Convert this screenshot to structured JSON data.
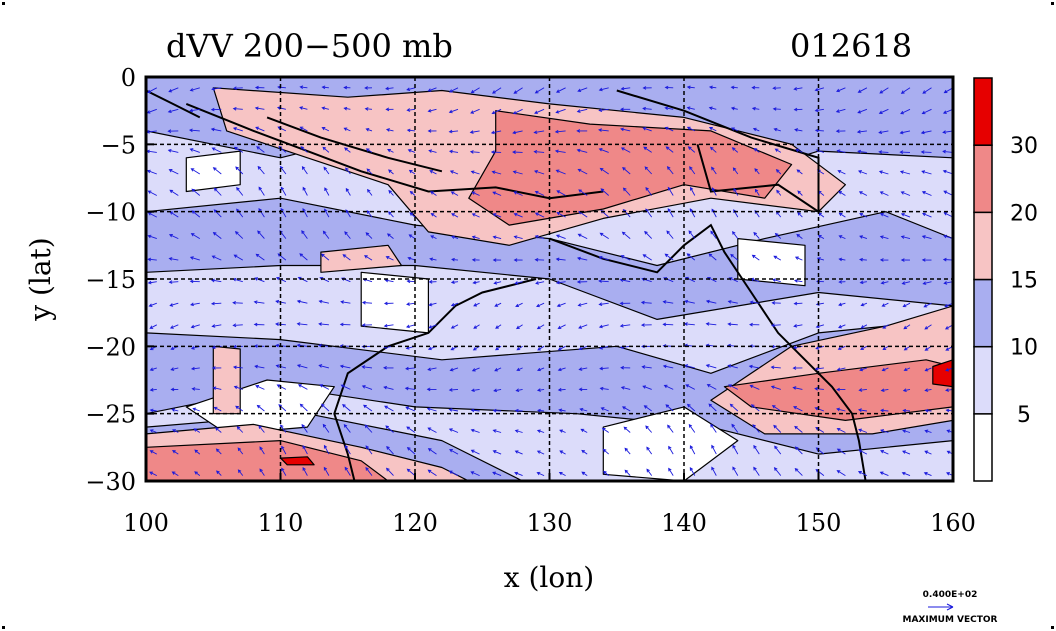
{
  "chart_data": {
    "type": "heatmap",
    "title": "dVV 200−500 mb",
    "date_label": "012618",
    "xlabel": "x (lon)",
    "ylabel": "y (lat)",
    "xlim": [
      100,
      160
    ],
    "ylim": [
      -30,
      0
    ],
    "x_ticks": [
      100,
      110,
      120,
      130,
      140,
      150,
      160
    ],
    "y_ticks": [
      0,
      -5,
      -10,
      -15,
      -20,
      -25,
      -30
    ],
    "x_tick_labels": [
      "100",
      "110",
      "120",
      "130",
      "140",
      "150",
      "160"
    ],
    "y_tick_labels": [
      "0",
      "−5",
      "−10",
      "−15",
      "−20",
      "−25",
      "−30"
    ],
    "colorbar": {
      "levels": [
        5,
        10,
        15,
        20,
        30
      ],
      "labels": [
        "5",
        "10",
        "15",
        "20",
        "30"
      ],
      "colors": [
        "#ffffff",
        "#dcdcfa",
        "#a9aef0",
        "#f7c4c4",
        "#ef8888",
        "#e60000"
      ]
    },
    "regions": [
      {
        "level": 1,
        "points": [
          [
            100,
            0
          ],
          [
            160,
            0
          ],
          [
            160,
            -30
          ],
          [
            100,
            -30
          ]
        ]
      },
      {
        "level": 2,
        "points": [
          [
            100,
            0
          ],
          [
            160,
            0
          ],
          [
            160,
            -6
          ],
          [
            150,
            -5.5
          ],
          [
            142,
            -8
          ],
          [
            135,
            -3
          ],
          [
            125,
            -7
          ],
          [
            118,
            -4
          ],
          [
            110,
            -6
          ],
          [
            100,
            -4
          ]
        ]
      },
      {
        "level": 2,
        "points": [
          [
            100,
            -10
          ],
          [
            110,
            -9
          ],
          [
            120,
            -11
          ],
          [
            130,
            -12
          ],
          [
            138,
            -14
          ],
          [
            146,
            -12
          ],
          [
            155,
            -10
          ],
          [
            160,
            -12
          ],
          [
            160,
            -17
          ],
          [
            150,
            -16
          ],
          [
            138,
            -18
          ],
          [
            130,
            -15
          ],
          [
            120,
            -14
          ],
          [
            110,
            -14
          ],
          [
            100,
            -14.5
          ]
        ]
      },
      {
        "level": 2,
        "points": [
          [
            100,
            -19
          ],
          [
            110,
            -19.5
          ],
          [
            122,
            -21
          ],
          [
            135,
            -20
          ],
          [
            142,
            -22
          ],
          [
            150,
            -19
          ],
          [
            160,
            -18
          ],
          [
            160,
            -27
          ],
          [
            150,
            -28
          ],
          [
            142,
            -26
          ],
          [
            132,
            -25
          ],
          [
            120,
            -24.5
          ],
          [
            110,
            -23
          ],
          [
            100,
            -25
          ]
        ]
      },
      {
        "level": 2,
        "points": [
          [
            100,
            -26
          ],
          [
            112,
            -25
          ],
          [
            122,
            -27
          ],
          [
            128,
            -30
          ],
          [
            100,
            -30
          ]
        ]
      },
      {
        "level": 0,
        "points": [
          [
            103,
            -24.5
          ],
          [
            109,
            -22.5
          ],
          [
            114,
            -23
          ],
          [
            112,
            -26
          ],
          [
            106,
            -26.5
          ]
        ]
      },
      {
        "level": 0,
        "points": [
          [
            116,
            -14.5
          ],
          [
            121,
            -15
          ],
          [
            121,
            -19
          ],
          [
            116,
            -18.5
          ]
        ]
      },
      {
        "level": 0,
        "points": [
          [
            134,
            -26
          ],
          [
            140,
            -24.5
          ],
          [
            144,
            -27
          ],
          [
            140,
            -30
          ],
          [
            134,
            -29.5
          ]
        ]
      },
      {
        "level": 0,
        "points": [
          [
            144,
            -12
          ],
          [
            149,
            -12.5
          ],
          [
            149,
            -15.5
          ],
          [
            144,
            -15
          ]
        ]
      },
      {
        "level": 0,
        "points": [
          [
            103,
            -6
          ],
          [
            107,
            -5.5
          ],
          [
            107,
            -8
          ],
          [
            103,
            -8.5
          ]
        ]
      },
      {
        "level": 3,
        "points": [
          [
            100,
            -26.5
          ],
          [
            108,
            -25.8
          ],
          [
            116,
            -27.5
          ],
          [
            122,
            -29
          ],
          [
            124,
            -30
          ],
          [
            100,
            -30
          ]
        ]
      },
      {
        "level": 3,
        "points": [
          [
            105,
            -0.8
          ],
          [
            115,
            -1.5
          ],
          [
            122,
            -1
          ],
          [
            130,
            -2
          ],
          [
            140,
            -3
          ],
          [
            148,
            -5
          ],
          [
            152,
            -8
          ],
          [
            150,
            -10
          ],
          [
            142,
            -9
          ],
          [
            134,
            -10.5
          ],
          [
            127,
            -12.5
          ],
          [
            121,
            -11.5
          ],
          [
            118,
            -8
          ],
          [
            112,
            -6
          ],
          [
            106,
            -4
          ]
        ]
      },
      {
        "level": 3,
        "points": [
          [
            142,
            -24
          ],
          [
            148,
            -20
          ],
          [
            155,
            -18.5
          ],
          [
            160,
            -17
          ],
          [
            160,
            -25.5
          ],
          [
            154,
            -26.5
          ],
          [
            146,
            -26.5
          ]
        ]
      },
      {
        "level": 3,
        "points": [
          [
            113,
            -13
          ],
          [
            118,
            -12.5
          ],
          [
            119,
            -14
          ],
          [
            113,
            -14.5
          ]
        ]
      },
      {
        "level": 3,
        "points": [
          [
            105,
            -20
          ],
          [
            107,
            -20.2
          ],
          [
            107,
            -25
          ],
          [
            105,
            -25
          ]
        ]
      },
      {
        "level": 4,
        "points": [
          [
            100,
            -27.5
          ],
          [
            110,
            -27
          ],
          [
            116,
            -28.5
          ],
          [
            118,
            -30
          ],
          [
            100,
            -30
          ]
        ]
      },
      {
        "level": 4,
        "points": [
          [
            126,
            -2.5
          ],
          [
            133,
            -3.5
          ],
          [
            142,
            -4
          ],
          [
            148,
            -6.5
          ],
          [
            146,
            -9
          ],
          [
            140,
            -8
          ],
          [
            134,
            -9.8
          ],
          [
            127,
            -11
          ],
          [
            124,
            -9
          ],
          [
            126,
            -5.5
          ]
        ]
      },
      {
        "level": 4,
        "points": [
          [
            143,
            -23
          ],
          [
            150,
            -22
          ],
          [
            158,
            -21
          ],
          [
            160,
            -21.5
          ],
          [
            160,
            -24.5
          ],
          [
            152,
            -25.5
          ],
          [
            145,
            -24.5
          ]
        ]
      },
      {
        "level": 5,
        "points": [
          [
            110,
            -28.3
          ],
          [
            112,
            -28.2
          ],
          [
            112.5,
            -28.8
          ],
          [
            110.5,
            -28.8
          ]
        ]
      },
      {
        "level": 5,
        "points": [
          [
            158.5,
            -21.5
          ],
          [
            160,
            -21
          ],
          [
            160,
            -23
          ],
          [
            158.5,
            -22.8
          ]
        ]
      }
    ],
    "coastlines": [
      [
        [
          103,
          -2
        ],
        [
          108,
          -4
        ],
        [
          112,
          -5.5
        ],
        [
          116,
          -7
        ],
        [
          121,
          -8.5
        ],
        [
          126,
          -8.2
        ],
        [
          130,
          -9
        ],
        [
          134,
          -8.5
        ]
      ],
      [
        [
          109,
          -3
        ],
        [
          113,
          -4.5
        ],
        [
          118,
          -6
        ],
        [
          122,
          -7
        ]
      ],
      [
        [
          130,
          -12
        ],
        [
          134,
          -13.5
        ],
        [
          138,
          -14.5
        ],
        [
          140,
          -12.5
        ],
        [
          142,
          -11
        ],
        [
          143,
          -13
        ],
        [
          145,
          -16
        ],
        [
          147,
          -19
        ],
        [
          149,
          -21
        ],
        [
          151,
          -23
        ],
        [
          152.5,
          -25
        ],
        [
          153,
          -27
        ],
        [
          153.5,
          -30
        ]
      ],
      [
        [
          129,
          -15
        ],
        [
          125,
          -16
        ],
        [
          123,
          -17
        ],
        [
          121,
          -19
        ],
        [
          118,
          -20
        ],
        [
          115,
          -22
        ],
        [
          114,
          -25
        ],
        [
          115,
          -28
        ],
        [
          115.5,
          -30
        ]
      ],
      [
        [
          100,
          -1
        ],
        [
          102,
          -2
        ],
        [
          104,
          -3
        ]
      ],
      [
        [
          135,
          -1
        ],
        [
          140,
          -2.5
        ],
        [
          145,
          -4.5
        ],
        [
          150,
          -6
        ],
        [
          150,
          -10
        ],
        [
          147,
          -8
        ],
        [
          142,
          -8.5
        ],
        [
          141,
          -5
        ]
      ]
    ],
    "vector_scale_label": "0.400E+02",
    "vector_caption": "MAXIMUM VECTOR"
  }
}
